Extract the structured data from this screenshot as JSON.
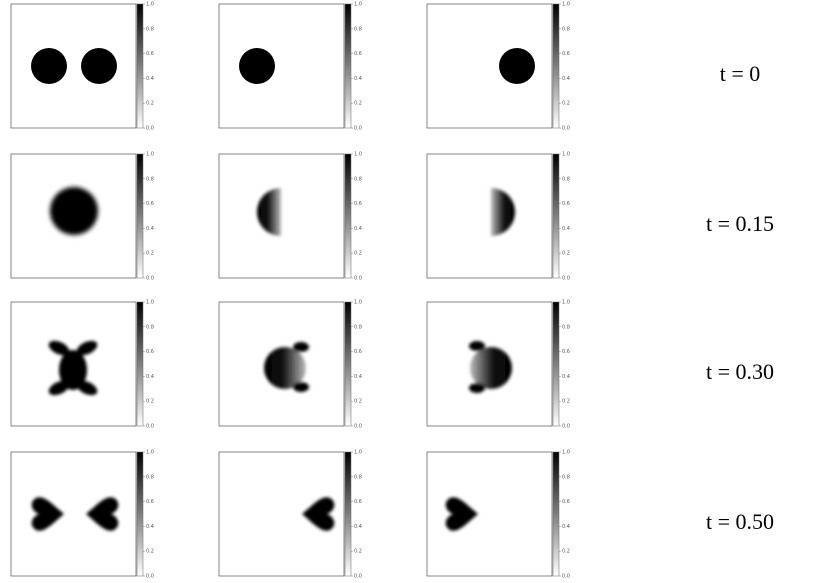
{
  "colorbar": {
    "ticks": [
      {
        "value": 0,
        "label": "0.0"
      },
      {
        "value": 0.2,
        "label": "0.2"
      },
      {
        "value": 0.4,
        "label": "0.4"
      },
      {
        "value": 0.6,
        "label": "0.6"
      },
      {
        "value": 0.8,
        "label": "0.8"
      },
      {
        "value": 1,
        "label": "1.0"
      }
    ]
  },
  "rows": [
    {
      "label": "t = 0"
    },
    {
      "label": "t = 0.15"
    },
    {
      "label": "t = 0.30"
    },
    {
      "label": "t = 0.50"
    }
  ]
}
